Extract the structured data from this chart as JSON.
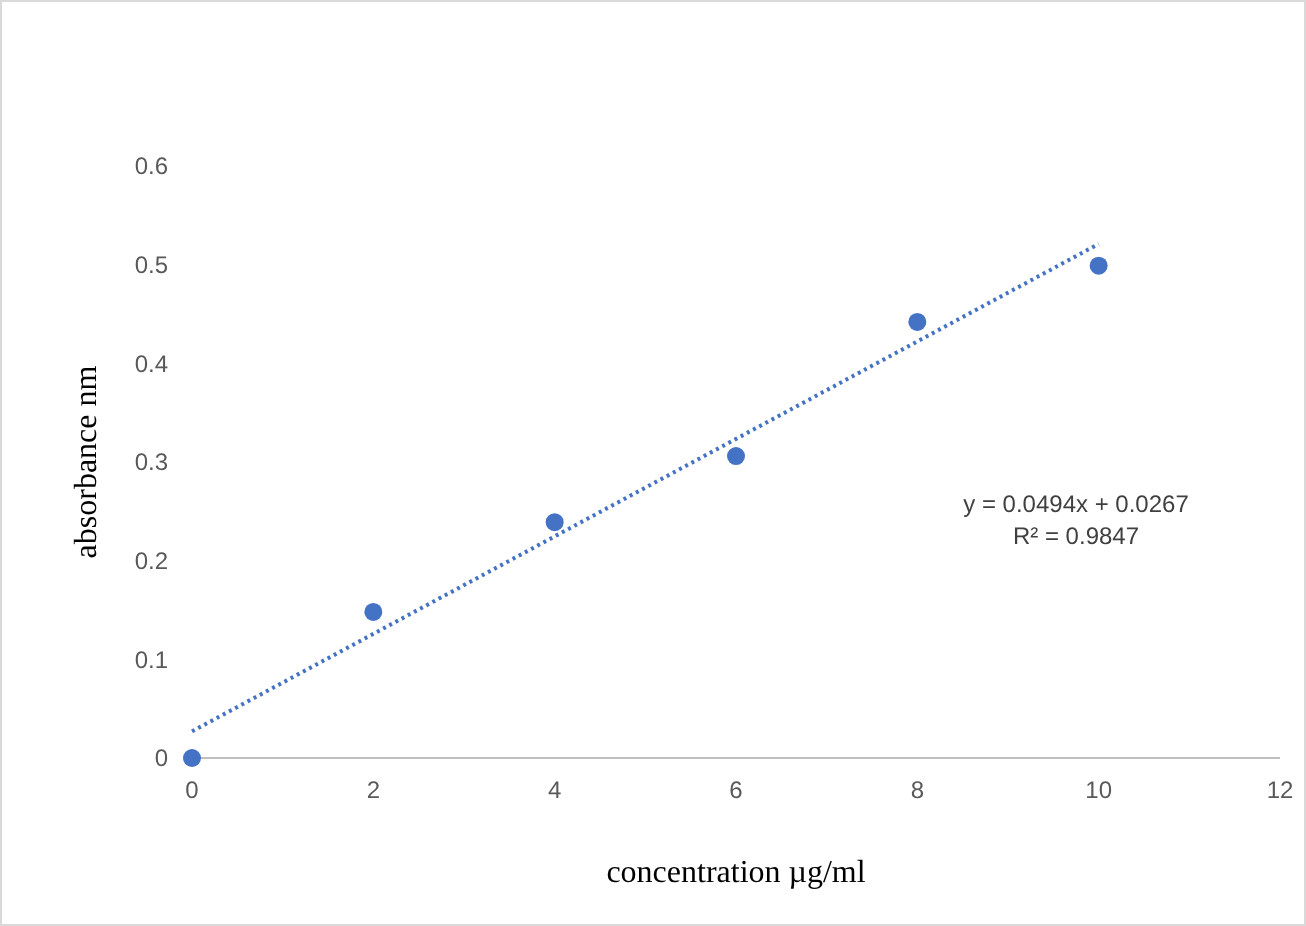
{
  "chart_data": {
    "type": "scatter",
    "xlabel": "concentration µg/ml",
    "ylabel": "absorbance nm",
    "x": [
      0,
      2,
      4,
      6,
      8,
      10
    ],
    "series": [
      {
        "color": "#4472c4",
        "marker": "circle",
        "values": [
          0,
          0.148,
          0.239,
          0.306,
          0.442,
          0.499
        ]
      },
      {
        "type": "line",
        "color": "#4472c4",
        "marker": "none",
        "line_style": "dotted",
        "x": [
          0,
          10
        ],
        "values": [
          0.027,
          0.521
        ]
      }
    ],
    "xlim": [
      0,
      12
    ],
    "xticks": [
      0,
      2,
      4,
      6,
      8,
      10,
      12
    ],
    "ylim": [
      0,
      0.6
    ],
    "yticks": [
      0,
      0.1,
      0.2,
      0.3,
      0.4,
      0.5,
      0.6
    ],
    "grid": false,
    "annotations": [
      "y = 0.0494x + 0.0267",
      "R² = 0.9847"
    ]
  }
}
